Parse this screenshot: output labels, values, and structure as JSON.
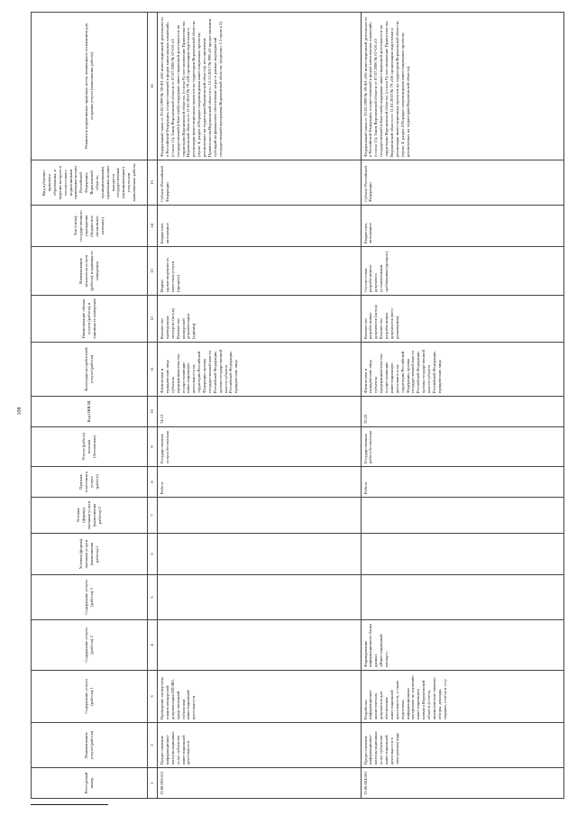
{
  "page_number": "108",
  "headers": [
    "Реестровый номер",
    "Наименование услуги (работы)",
    "Содержание услуги (работы) 1",
    "Содержание услуги (работы) 2",
    "Содержание услуги (работы) 3",
    "Условия (формы) оказания услуги (выполнения работы) 1",
    "Условия (формы) оказания услуги (выполнения работы) 2",
    "Признак отнесения к услуге (работе)",
    "Услуга (работа) платная (бесплатная)",
    "Код ОКВЭД",
    "Категории потребителей услуги (работы)",
    "Наименование объема услуги (работы) и единицы ее измерения",
    "Наименование показателя услуги (работы) и единицы ее измерения",
    "Тип (типы) государственного учреждения (бюджетное, автономное, казенное)",
    "Вид публично-правового образования, в ведении которого в соответствии с нормативными правовыми актами Российской Федерации, Воронежской области, муниципальными правовыми актами находятся государственные (муниципальные) услуги или выполняемые работы",
    "Реквизиты нормативных правовых актов, являющихся основанием для создания услуги (выполнения работы)"
  ],
  "column_numbers": [
    "1",
    "2",
    "3",
    "4",
    "5",
    "6",
    "7",
    "8",
    "9",
    "10",
    "11",
    "12",
    "13",
    "14",
    "15",
    "16"
  ],
  "rows": [
    {
      "c1": "13.00.003.011",
      "c2": "Предоставление информационно-консультационных услуг субъектам инвестиционной деятельности",
      "c3": "Проведение экспертизы планов конкурсной документации ПП-ВО, представленной субъектами инвестиционной деятельности",
      "c4": "",
      "c5": "",
      "c6": "",
      "c7": "",
      "c8": "Работа",
      "c9": "Государственная услуга бесплатная",
      "c10": "74.12",
      "c11": "Физические и юридические лица субъекты предпринимательства, осуществляющие инвестиционную деятельность на территории Российской Федерации, органы государственной власти Российской Федерации, органы государственной власти субъекта Российской Федерации, юридические лица",
      "c12": "Количество проведенных экспертиз (штук); Количество конкурсной документации (единиц)",
      "c13": "Индекс удовлетворенности качеством услуги (процент)",
      "c14": "Бюджетное, автономное",
      "c15": "Субъект Российской Федерации",
      "c16": "Федеральный закон от 25.02.1999 № 39-ФЗ «Об инвестиционной деятельности в Российской Федерации, осуществляемой в форме капитальных вложений» (статья 11); Закон Воронежской области от 07.07.2006 № 67-ОЗ «О государственной (областной) поддержке инвестиционной деятельности на территории Воронежской области» (статья 9); постановление Правительства Воронежской области от 11.02.2010 № 79 «Об организации подготовки и реализации инвестиционных проектов на территории Воронежской области» (пункт 4, раздел 4 Порядка сопровождения инвестиционных проектов, реализуемых на территории Воронежской области); постановление Правительства Воронежской области от 12.12.2017 № 999 «О предоставлении субсидий на финансовое обеспечение затрат в рамках мероприятий государственной программы Воронежской области» (подпункт 2.1 пункта 2)"
    },
    {
      "c1": "13.00.004.001",
      "c2": "Предоставление информационно-консультационных услуг субъектам инвестиционной деятельности в электронном виде",
      "c3": "Разработка информационно-аналитических документов для обеспечения инвестиционной деятельности, а также подготовка информационных материалов по изучению инвестиционного климата Воронежской области (отчеты, аналитические записки, обзоры, доклады, справки, отчеты и т.п.)",
      "c4": "Формирование информационного банка данных «Инвестиционный паспорт»",
      "c5": "",
      "c6": "",
      "c7": "",
      "c8": "Работа",
      "c9": "Государственная работа бесплатная",
      "c10": "70.22",
      "c11": "Физические и юридические лица субъекты предпринимательства, осуществляющие инвестиционную деятельность на территории Российской Федерации, органы государственной власти Российской Федерации, органы государственной власти субъекта Российской Федерации, юридические лица",
      "c12": "Количество разработанных документов (штук); Количество разработанных документов (мест размещения)",
      "c13": "Соответствие разработанного документа установленным требованиям (процент)",
      "c14": "Бюджетное, автономное",
      "c15": "Субъект Российской Федерации",
      "c16": "Федеральный закон от 25.02.1999 № 39-ФЗ «Об инвестиционной деятельности в Российской Федерации, осуществляемой в форме капитальных вложений» (статья 11); Закон Воронежской области от 07.07.2006 № 67-ОЗ «О государственной (областной) поддержке инвестиционной деятельности на территории Воронежской области» (статья 9); постановление Правительства Воронежской области от 11.02.2010 № 79 «Об организации подготовки и реализации инвестиционных проектов на территории Воронежской области» (пункт 4, раздел 4 Порядка сопровождения инвестиционных проектов, реализуемых на территории Воронежской области)"
    }
  ]
}
